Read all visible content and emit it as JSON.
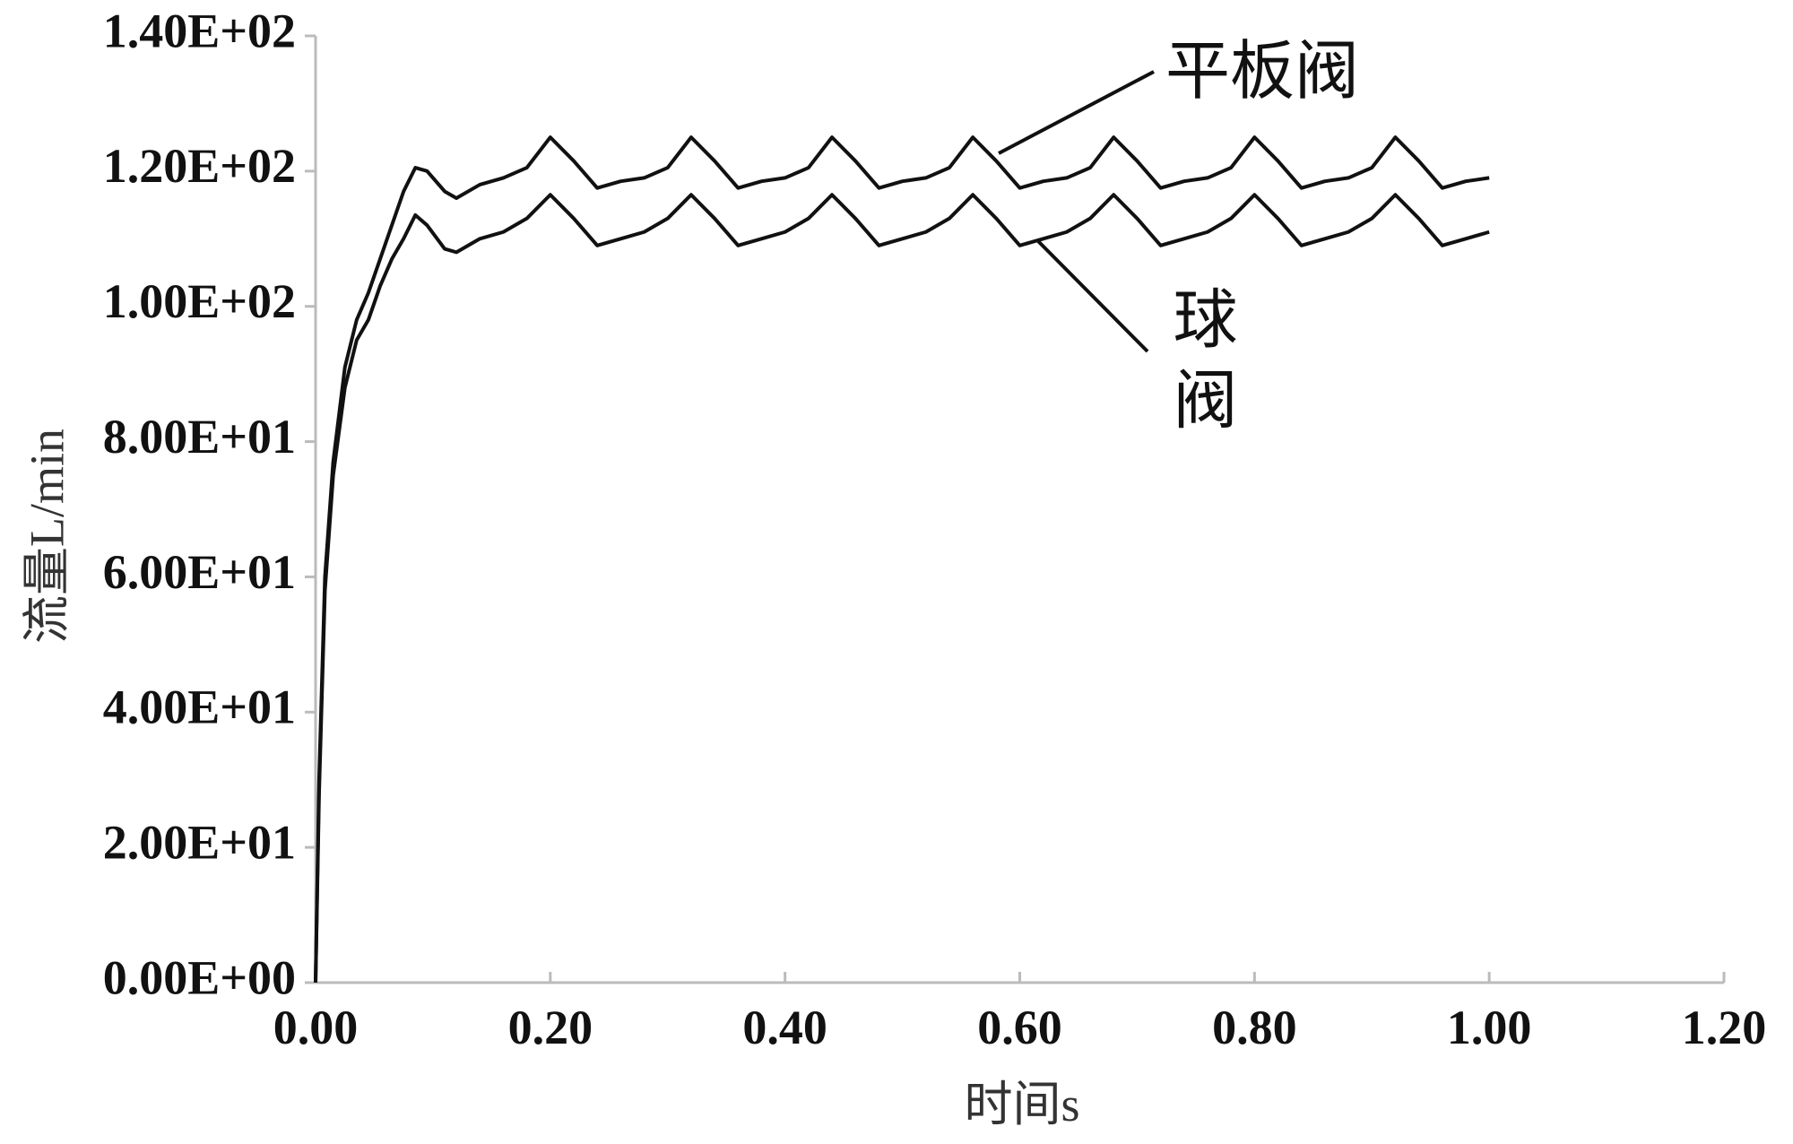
{
  "chart_data": {
    "type": "line",
    "y_label": "流量L/min",
    "x_label": "时间s",
    "x": [
      0,
      0.003,
      0.008,
      0.015,
      0.025,
      0.035,
      0.045,
      0.055,
      0.065,
      0.075,
      0.085,
      0.095,
      0.11,
      0.12,
      0.14,
      0.16,
      0.18,
      0.2,
      0.22,
      0.24,
      0.26,
      0.28,
      0.3,
      0.32,
      0.34,
      0.36,
      0.38,
      0.4,
      0.42,
      0.44,
      0.46,
      0.48,
      0.5,
      0.52,
      0.54,
      0.56,
      0.58,
      0.6,
      0.62,
      0.64,
      0.66,
      0.68,
      0.7,
      0.72,
      0.74,
      0.76,
      0.78,
      0.8,
      0.82,
      0.84,
      0.86,
      0.88,
      0.9,
      0.92,
      0.94,
      0.96,
      0.98,
      1.0
    ],
    "series": [
      {
        "name": "平板阀",
        "color": "#111111",
        "values": [
          0,
          30,
          60,
          77,
          91,
          98,
          102,
          107,
          112,
          117,
          120.5,
          120,
          117,
          116,
          118,
          119,
          120.5,
          125,
          121.5,
          117.5,
          118.5,
          119,
          120.5,
          125,
          121.5,
          117.5,
          118.5,
          119,
          120.5,
          125,
          121.5,
          117.5,
          118.5,
          119,
          120.5,
          125,
          121.5,
          117.5,
          118.5,
          119,
          120.5,
          125,
          121.5,
          117.5,
          118.5,
          119,
          120.5,
          125,
          121.5,
          117.5,
          118.5,
          119,
          120.5,
          125,
          121.5,
          117.5,
          118.5,
          119
        ]
      },
      {
        "name": "球阀",
        "color": "#111111",
        "values": [
          0,
          28,
          58,
          75,
          88,
          95,
          98,
          103,
          107,
          110,
          113.5,
          112,
          108.5,
          108,
          110,
          111,
          113,
          116.5,
          113,
          109,
          110,
          111,
          113,
          116.5,
          113,
          109,
          110,
          111,
          113,
          116.5,
          113,
          109,
          110,
          111,
          113,
          116.5,
          113,
          109,
          110,
          111,
          113,
          116.5,
          113,
          109,
          110,
          111,
          113,
          116.5,
          113,
          109,
          110,
          111,
          113,
          116.5,
          113,
          109,
          110,
          111
        ]
      }
    ],
    "xlim": [
      0,
      1.2
    ],
    "xticks": [
      {
        "value": 0,
        "label": "0.00"
      },
      {
        "value": 0.2,
        "label": "0.20"
      },
      {
        "value": 0.4,
        "label": "0.40"
      },
      {
        "value": 0.6,
        "label": "0.60"
      },
      {
        "value": 0.8,
        "label": "0.80"
      },
      {
        "value": 1.0,
        "label": "1.00"
      },
      {
        "value": 1.2,
        "label": "1.20"
      }
    ],
    "ylim": [
      0,
      140
    ],
    "yticks": [
      {
        "value": 0,
        "label": "0.00E+00"
      },
      {
        "value": 20,
        "label": "2.00E+01"
      },
      {
        "value": 40,
        "label": "4.00E+01"
      },
      {
        "value": 60,
        "label": "6.00E+01"
      },
      {
        "value": 80,
        "label": "8.00E+01"
      },
      {
        "value": 100,
        "label": "1.00E+02"
      },
      {
        "value": 120,
        "label": "1.20E+02"
      },
      {
        "value": 140,
        "label": "1.40E+02"
      }
    ],
    "grid": false
  }
}
